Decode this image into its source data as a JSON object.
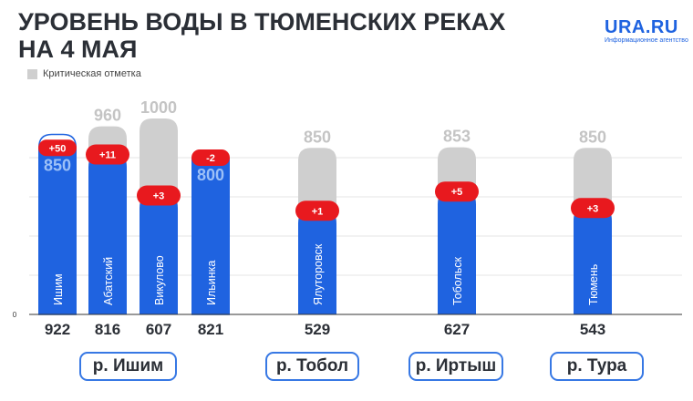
{
  "title_line1": "УРОВЕНЬ ВОДЫ В ТЮМЕНСКИХ РЕКАХ",
  "title_line2": "НА 4 МАЯ",
  "brand": {
    "name": "URA.RU",
    "tagline": "Информационное агентство"
  },
  "legend": {
    "label": "Критическая отметка",
    "color": "#cfcfcf"
  },
  "colors": {
    "level": "#1f63e0",
    "critical": "#cfcfcf",
    "change": "#e8191e",
    "pill_border": "#3778e4",
    "text": "#2b2f36"
  },
  "rivers": [
    "р. Ишим",
    "р. Тобол",
    "р. Иртыш",
    "р. Тура"
  ],
  "chart_data": {
    "type": "bar",
    "title": "УРОВЕНЬ ВОДЫ В ТЮМЕНСКИХ РЕКАХ НА 4 МАЯ",
    "zero_label": "0",
    "categories": [
      "Ишим",
      "Абатский",
      "Викулово",
      "Ильинка",
      "Ялуторовск",
      "Тобольск",
      "Тюмень"
    ],
    "series": [
      {
        "name": "level",
        "values": [
          922,
          816,
          607,
          821,
          529,
          627,
          543
        ],
        "labels": [
          "922",
          "816",
          "607",
          "821",
          "529",
          "627",
          "543"
        ]
      },
      {
        "name": "Критическая отметка",
        "values": [
          850,
          960,
          1000,
          800,
          850,
          853,
          850
        ],
        "labels": [
          "850",
          "960",
          "1000",
          "800",
          "850",
          "853",
          "850"
        ]
      }
    ],
    "change_labels": [
      "+50",
      "+11",
      "+3",
      "-2",
      "+1",
      "+5",
      "+3"
    ],
    "groups": [
      {
        "river": "р. Ишим",
        "categories": [
          "Ишим",
          "Абатский",
          "Викулово",
          "Ильинка"
        ]
      },
      {
        "river": "р. Тобол",
        "categories": [
          "Ялуторовск"
        ]
      },
      {
        "river": "р. Иртыш",
        "categories": [
          "Тобольск"
        ]
      },
      {
        "river": "р. Тура",
        "categories": [
          "Тюмень"
        ]
      }
    ],
    "ylim": [
      0,
      1000
    ],
    "grid": true,
    "legend_position": "top-left"
  }
}
